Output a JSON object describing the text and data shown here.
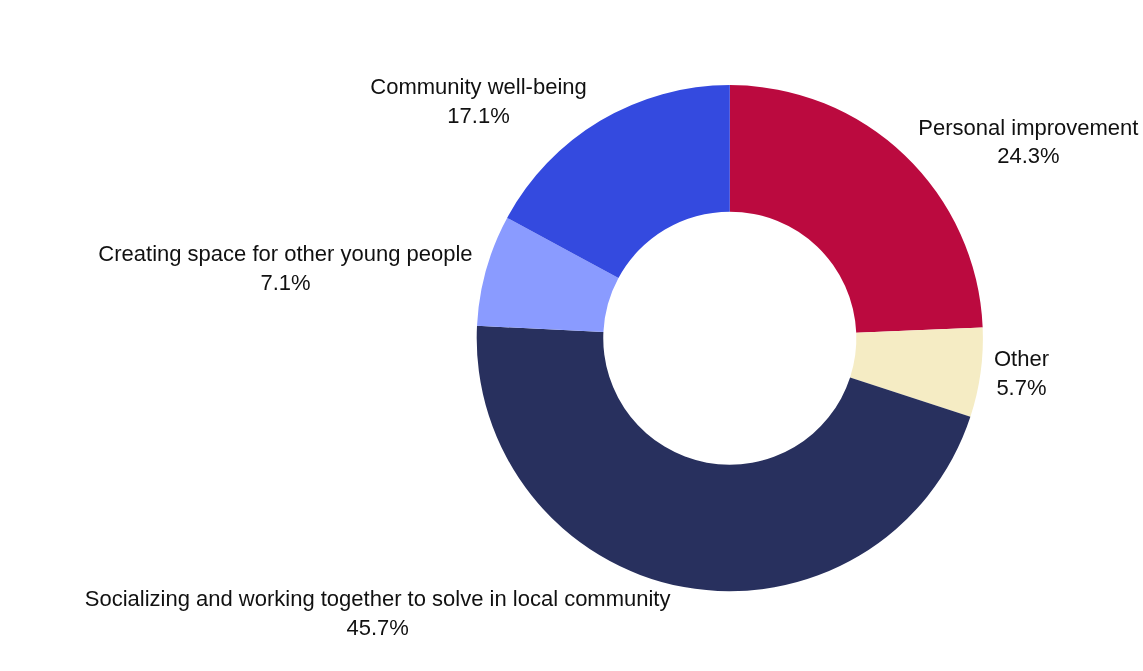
{
  "chart_data": {
    "type": "donut",
    "categories": [
      "Personal improvement",
      "Other",
      "Socializing and working together to solve in local community",
      "Creating space for other young people",
      "Community well-being"
    ],
    "values": [
      24.3,
      5.7,
      45.7,
      7.1,
      17.1
    ],
    "value_labels": [
      "24.3%",
      "5.7%",
      "45.7%",
      "7.1%",
      "17.1%"
    ],
    "colors": [
      "#bb0a3f",
      "#f5ecc4",
      "#28305e",
      "#8a9bff",
      "#344adf"
    ],
    "legend": false
  }
}
